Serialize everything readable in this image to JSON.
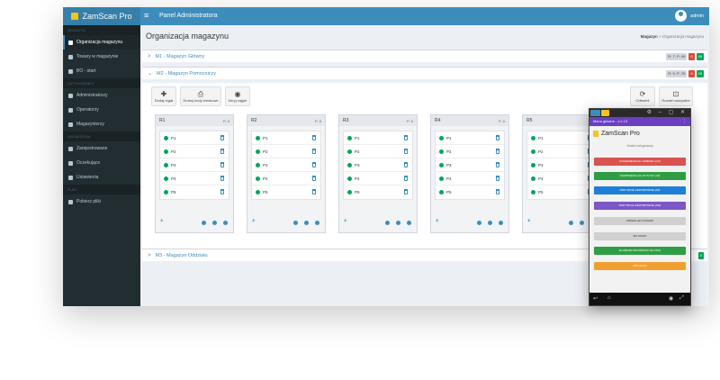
{
  "app": {
    "brand": "ZamScan Pro",
    "panel_title": "Panel Administratora",
    "user": "admin"
  },
  "sidebar": {
    "sections": [
      {
        "header": "MAGAZYN",
        "items": [
          {
            "label": "Organizacja magazynu",
            "icon": "warehouse-icon",
            "active": true
          },
          {
            "label": "Towary w magazynie",
            "icon": "users-icon",
            "active": false
          },
          {
            "label": "BO - start",
            "icon": "box-icon",
            "active": false
          }
        ]
      },
      {
        "header": "UŻYTKOWNICY",
        "items": [
          {
            "label": "Administratorzy",
            "icon": "users-icon",
            "active": false
          },
          {
            "label": "Operatorzy",
            "icon": "users-icon",
            "active": false
          },
          {
            "label": "Magazynierzy",
            "icon": "users-icon",
            "active": false
          }
        ]
      },
      {
        "header": "URZĄDZENIA",
        "items": [
          {
            "label": "Zarejestrowane",
            "icon": "mobile-icon",
            "active": false
          },
          {
            "label": "Oczekujące",
            "icon": "mobile-icon",
            "active": false
          },
          {
            "label": "Ustawienia",
            "icon": "gear-icon",
            "active": false
          }
        ]
      },
      {
        "header": "PLIKI",
        "items": [
          {
            "label": "Pobierz pliki",
            "icon": "download-icon",
            "active": false
          }
        ]
      }
    ]
  },
  "page": {
    "title": "Organizacja magazynu",
    "breadcrumb": {
      "root": "Magazyn",
      "current": "Organizacja magazynu"
    }
  },
  "warehouses": [
    {
      "label": "M1 - Magazyn Główny",
      "expanded": false,
      "badge_info": "R: 7, P: 49",
      "badge_red": "0",
      "badge_green": "49"
    },
    {
      "label": "M2 - Magazyn Pomocniczy",
      "expanded": true,
      "badge_info": "R: 5, P: 25",
      "badge_red": "0",
      "badge_green": "25"
    },
    {
      "label": "M3 - Magazyn Oddziału",
      "expanded": false,
      "badge_info": "",
      "badge_red": "",
      "badge_green": "0"
    }
  ],
  "toolbar": {
    "add_rack": "Dodaj regał",
    "print_labels": "Drukuj kody kreskowe",
    "show_occupied": "Ukryj zajęte",
    "refresh": "Odśwież",
    "collapse_all": "Rozwiń wszystkie"
  },
  "racks": [
    {
      "name": "R1",
      "meta": "P: 5",
      "shelves": [
        "P1",
        "P2",
        "P3",
        "P4",
        "P5"
      ]
    },
    {
      "name": "R2",
      "meta": "P: 5",
      "shelves": [
        "P1",
        "P2",
        "P3",
        "P4",
        "P5"
      ]
    },
    {
      "name": "R3",
      "meta": "P: 5",
      "shelves": [
        "P1",
        "P2",
        "P3",
        "P4",
        "P5"
      ]
    },
    {
      "name": "R4",
      "meta": "P: 5",
      "shelves": [
        "P1",
        "P2",
        "P3",
        "P4",
        "P5"
      ]
    },
    {
      "name": "R5",
      "meta": "P: 5",
      "shelves": [
        "P1",
        "P2",
        "P3",
        "P4",
        "P5"
      ]
    }
  ],
  "phone": {
    "title": "Menu główne - v.1.13",
    "logo": "ZamScan Pro",
    "subtitle": "Jesteś zalogowany",
    "buttons": [
      {
        "label": "ZAMÓWIENIA DO ODBIORU (23)",
        "color": "#d9534f"
      },
      {
        "label": "ZAMÓWIENIA DO WYSYŁKI (23)",
        "color": "#2e9e44"
      },
      {
        "label": "PRZYJĘCIE ZEWNĘTRZNE (PZ)",
        "color": "#1f7fd6"
      },
      {
        "label": "PRZYJĘCIE WEWNĘTRZNE (PW)",
        "color": "#7b57c8"
      },
      {
        "label": "PRZEGLĄD TOWARU",
        "color": "#d0d0d0"
      },
      {
        "label": "BO START",
        "color": "#d0d0d0"
      },
      {
        "label": "ZŁOŻENIE PROGRAMU NA STAN",
        "color": "#2e9e44"
      },
      {
        "label": "WYLOGUJ",
        "color": "#f0a030"
      }
    ]
  },
  "colors": {
    "primary": "#3c8dbc",
    "sidebar": "#222d32",
    "success": "#00a65a",
    "danger": "#dd4b39"
  }
}
